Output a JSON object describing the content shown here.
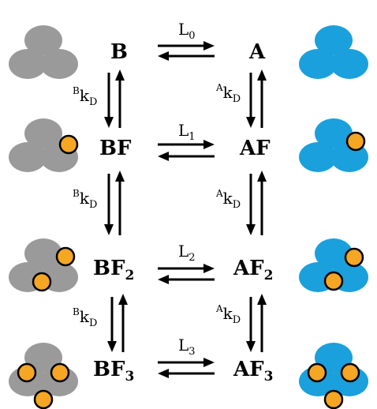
{
  "colors": {
    "inactive_trimer": "#9a9a9a",
    "active_trimer": "#1aa0dc",
    "ligand": "#f5a623",
    "ligand_outline": "#000000",
    "arrows": "#000000"
  },
  "rows": [
    {
      "inactive": {
        "base": "B",
        "sub": ""
      },
      "active": {
        "base": "A",
        "sub": ""
      },
      "equilibrium": {
        "base": "L",
        "sub": "0"
      },
      "ligand_count": 0
    },
    {
      "inactive": {
        "base": "BF",
        "sub": ""
      },
      "active": {
        "base": "AF",
        "sub": ""
      },
      "equilibrium": {
        "base": "L",
        "sub": "1"
      },
      "ligand_count": 1
    },
    {
      "inactive": {
        "base": "BF",
        "sub": "2"
      },
      "active": {
        "base": "AF",
        "sub": "2"
      },
      "equilibrium": {
        "base": "L",
        "sub": "2"
      },
      "ligand_count": 2
    },
    {
      "inactive": {
        "base": "BF",
        "sub": "3"
      },
      "active": {
        "base": "AF",
        "sub": "3"
      },
      "equilibrium": {
        "base": "L",
        "sub": "3"
      },
      "ligand_count": 3
    }
  ],
  "vertical_rates": {
    "left": {
      "sup": "B",
      "base": "k",
      "sub": "D"
    },
    "right": {
      "sup": "A",
      "base": "k",
      "sub": "D"
    }
  }
}
